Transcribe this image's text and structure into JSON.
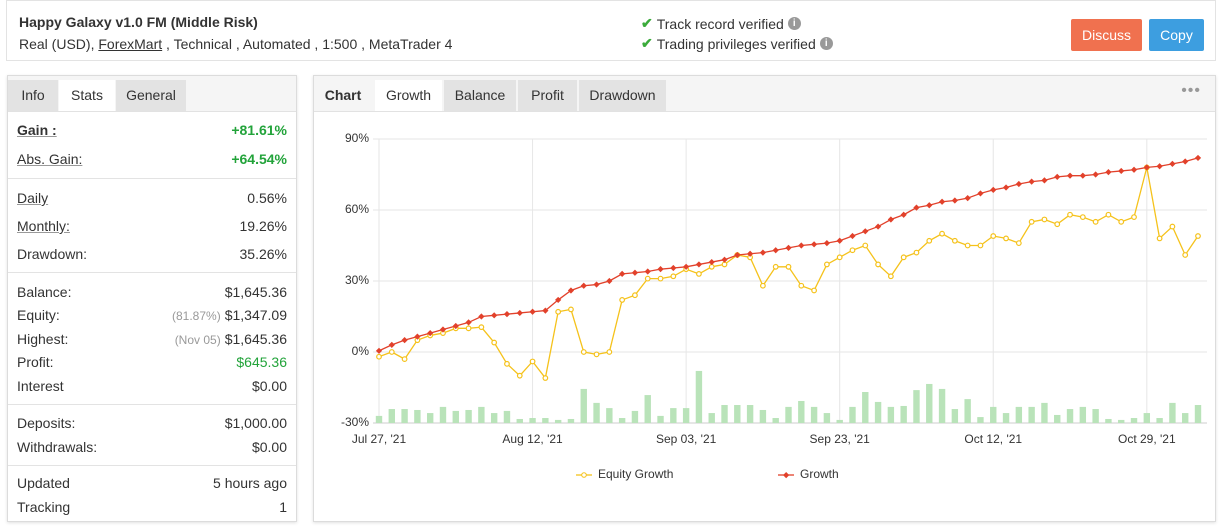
{
  "header": {
    "title": "Happy Galaxy v1.0 FM (Middle Risk)",
    "account": "Real (USD),",
    "broker": "ForexMart",
    "details": ", Technical , Automated , 1:500 , MetaTrader 4",
    "verifications": [
      "Track record verified",
      "Trading privileges verified"
    ],
    "buttons": [
      "Discuss",
      "Copy"
    ]
  },
  "info_tabs": [
    "Info",
    "Stats",
    "General"
  ],
  "info_active": 1,
  "stats": [
    [
      {
        "label": "Gain :",
        "value": "+81.61%",
        "color": "#22a33a"
      },
      {
        "label": "Abs. Gain:",
        "value": "+64.54%",
        "color": "#22a33a"
      }
    ],
    [
      {
        "label": "Daily",
        "value": "0.56%"
      },
      {
        "label": "Monthly:",
        "value": "19.26%"
      },
      {
        "label": "Drawdown:",
        "value": "35.26%"
      }
    ],
    [
      {
        "label": "Balance:",
        "value": "$1,645.36"
      },
      {
        "label": "Equity:",
        "note": "(81.87%)",
        "value": "$1,347.09"
      },
      {
        "label": "Highest:",
        "note": "(Nov 05)",
        "value": "$1,645.36"
      },
      {
        "label": "Profit:",
        "value": "$645.36",
        "color": "#22a33a"
      },
      {
        "label": "Interest",
        "value": "$0.00"
      }
    ],
    [
      {
        "label": "Deposits:",
        "value": "$1,000.00"
      },
      {
        "label": "Withdrawals:",
        "value": "$0.00"
      }
    ],
    [
      {
        "label": "Updated",
        "value": "5 hours ago"
      },
      {
        "label": "Tracking",
        "value": "1"
      }
    ]
  ],
  "chart_tabs": [
    "Chart",
    "Growth",
    "Balance",
    "Profit",
    "Drawdown"
  ],
  "chart_active": 1,
  "chart_data": {
    "type": "line",
    "categories": [
      "Jul 27, '21",
      null,
      null,
      null,
      null,
      null,
      null,
      null,
      null,
      null,
      null,
      null,
      "Aug 12, '21",
      null,
      null,
      null,
      null,
      null,
      null,
      null,
      null,
      null,
      null,
      null,
      "Sep 03, '21",
      null,
      null,
      null,
      null,
      null,
      null,
      null,
      null,
      null,
      null,
      null,
      "Sep 23, '21",
      null,
      null,
      null,
      null,
      null,
      null,
      null,
      null,
      null,
      null,
      null,
      "Oct 12, '21",
      null,
      null,
      null,
      null,
      null,
      null,
      null,
      null,
      null,
      null,
      null,
      "Oct 29, '21",
      null,
      null,
      null,
      null
    ],
    "series": [
      {
        "name": "Equity Growth",
        "color": "#f5c21b",
        "values": [
          -2,
          0,
          -3,
          5,
          7,
          8,
          10,
          10,
          10.5,
          4,
          -5,
          -10,
          -4,
          -11,
          17,
          18,
          0,
          -1,
          0,
          22,
          24,
          31,
          31,
          32,
          35,
          33,
          36,
          37,
          41,
          40,
          28,
          36,
          36,
          28,
          26,
          37,
          40,
          43,
          45,
          37,
          32,
          40,
          42,
          47,
          50,
          47,
          45,
          45,
          49,
          48,
          46,
          55,
          56,
          54,
          58,
          57,
          55,
          58,
          55,
          57,
          78,
          48,
          53,
          41,
          49
        ]
      },
      {
        "name": "Growth",
        "color": "#e2412b",
        "values": [
          0.5,
          3,
          5,
          6.5,
          8,
          9.5,
          11,
          12.5,
          15,
          15.5,
          16,
          16.5,
          17,
          17.5,
          22,
          26,
          28,
          28.5,
          30,
          33,
          33.5,
          34,
          35,
          35.5,
          36,
          37,
          38,
          39,
          41,
          41.5,
          42,
          43,
          44,
          45,
          45.5,
          46,
          47,
          49,
          51,
          53,
          56,
          58,
          61,
          62,
          63.5,
          64,
          65,
          67,
          68.5,
          69.5,
          71,
          72,
          72.5,
          74,
          74.5,
          74.5,
          75,
          76,
          76.5,
          77,
          78,
          78.5,
          79.5,
          80.5,
          82
        ]
      }
    ],
    "bars": {
      "type": "bar",
      "color": "#b9e3b9",
      "values": [
        -27,
        -24.1,
        -24.1,
        -24.5,
        -25.8,
        -23.2,
        -24.9,
        -24.5,
        -23.2,
        -25.8,
        -24.9,
        -28.3,
        -27.9,
        -27.9,
        -28.7,
        -28.3,
        -15.6,
        -21.5,
        -23.7,
        -27.9,
        -24.9,
        -18.2,
        -27,
        -23.7,
        -23.7,
        -8,
        -25.8,
        -22.4,
        -22.4,
        -22.4,
        -24.5,
        -27.9,
        -23.2,
        -20.7,
        -23.2,
        -25.8,
        -28.7,
        -23.2,
        -16.9,
        -21.1,
        -23.2,
        -22.8,
        -16.1,
        -13.5,
        -15.6,
        -24.1,
        -19.9,
        -27.5,
        -23.2,
        -25.8,
        -23.2,
        -23.2,
        -21.5,
        -26.6,
        -24.1,
        -23.2,
        -24.1,
        -28.3,
        -28.7,
        -27.9,
        -25.8,
        -27.9,
        -21.5,
        -25.8,
        -22.4
      ]
    },
    "ylim": [
      -30,
      90
    ],
    "yticks": [
      {
        "value": -30,
        "label": "-30%"
      },
      {
        "value": 0,
        "label": "0%"
      },
      {
        "value": 30,
        "label": "30%"
      },
      {
        "value": 60,
        "label": "60%"
      },
      {
        "value": 90,
        "label": "90%"
      }
    ],
    "grid": true,
    "legend": "bottom"
  }
}
